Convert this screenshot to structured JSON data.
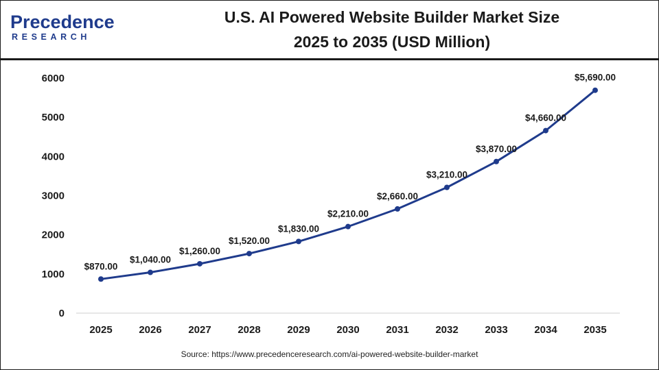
{
  "brand": {
    "logo_name": "Precedence",
    "logo_sub": "RESEARCH",
    "logo_color": "#1f3b8c"
  },
  "header": {
    "title_line1": "U.S. AI Powered Website Builder Market Size",
    "title_line2": "2025 to 2035 (USD Million)"
  },
  "footer": {
    "source": "Source: https://www.precedenceresearch.com/ai-powered-website-builder-market"
  },
  "chart_data": {
    "type": "line",
    "title": "U.S. AI Powered Website Builder Market Size 2025 to 2035 (USD Million)",
    "x": [
      "2025",
      "2026",
      "2027",
      "2028",
      "2029",
      "2030",
      "2031",
      "2032",
      "2033",
      "2034",
      "2035"
    ],
    "series": [
      {
        "values": [
          870,
          1040,
          1260,
          1520,
          1830,
          2210,
          2660,
          3210,
          3870,
          4660,
          5690
        ],
        "labels": [
          "$870.00",
          "$1,040.00",
          "$1,260.00",
          "$1,520.00",
          "$1,830.00",
          "$2,210.00",
          "$2,660.00",
          "$3,210.00",
          "$3,870.00",
          "$4,660.00",
          "$5,690.00"
        ],
        "color": "#1f3b8c"
      }
    ],
    "yticks": [
      0,
      1000,
      2000,
      3000,
      4000,
      5000,
      6000
    ],
    "ylim": [
      0,
      6000
    ],
    "grid": false,
    "legend": "none",
    "xlabel": "",
    "ylabel": ""
  }
}
